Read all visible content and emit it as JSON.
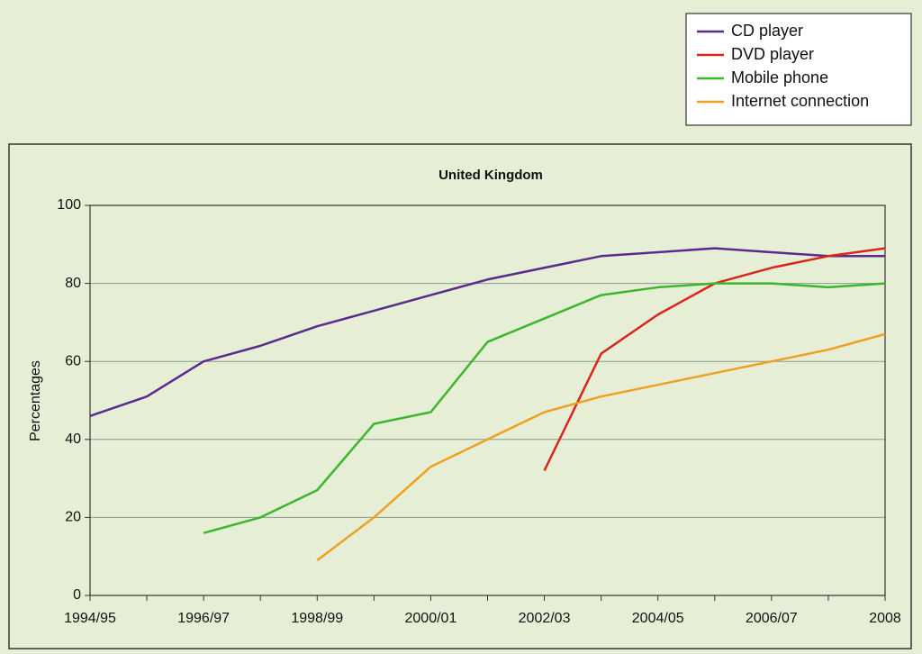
{
  "chart_data": {
    "type": "line",
    "title": "United Kingdom",
    "y_label": "Percentages",
    "categories": [
      "1994/95",
      null,
      "1996/97",
      null,
      "1998/99",
      null,
      "2000/01",
      null,
      "2002/03",
      null,
      "2004/05",
      null,
      "2006/07",
      null,
      "2008"
    ],
    "series": [
      {
        "name": "CD player",
        "color": "#5b2a8c",
        "values": [
          46,
          51,
          60,
          64,
          69,
          73,
          77,
          81,
          84,
          87,
          88,
          89,
          88,
          87,
          87
        ]
      },
      {
        "name": "DVD player",
        "color": "#d9261c",
        "values": [
          null,
          null,
          null,
          null,
          null,
          null,
          null,
          null,
          32,
          62,
          72,
          80,
          84,
          87,
          89
        ]
      },
      {
        "name": "Mobile phone",
        "color": "#3cb62d",
        "values": [
          null,
          null,
          16,
          20,
          27,
          44,
          47,
          65,
          71,
          77,
          79,
          80,
          80,
          79,
          80
        ]
      },
      {
        "name": "Internet connection",
        "color": "#f0a020",
        "values": [
          null,
          null,
          null,
          null,
          9,
          20,
          33,
          40,
          47,
          51,
          54,
          57,
          60,
          63,
          67
        ]
      }
    ],
    "ylim": [
      0,
      100
    ],
    "yticks": [
      0,
      20,
      40,
      60,
      80,
      100
    ],
    "grid": true,
    "legend": "top-right"
  }
}
